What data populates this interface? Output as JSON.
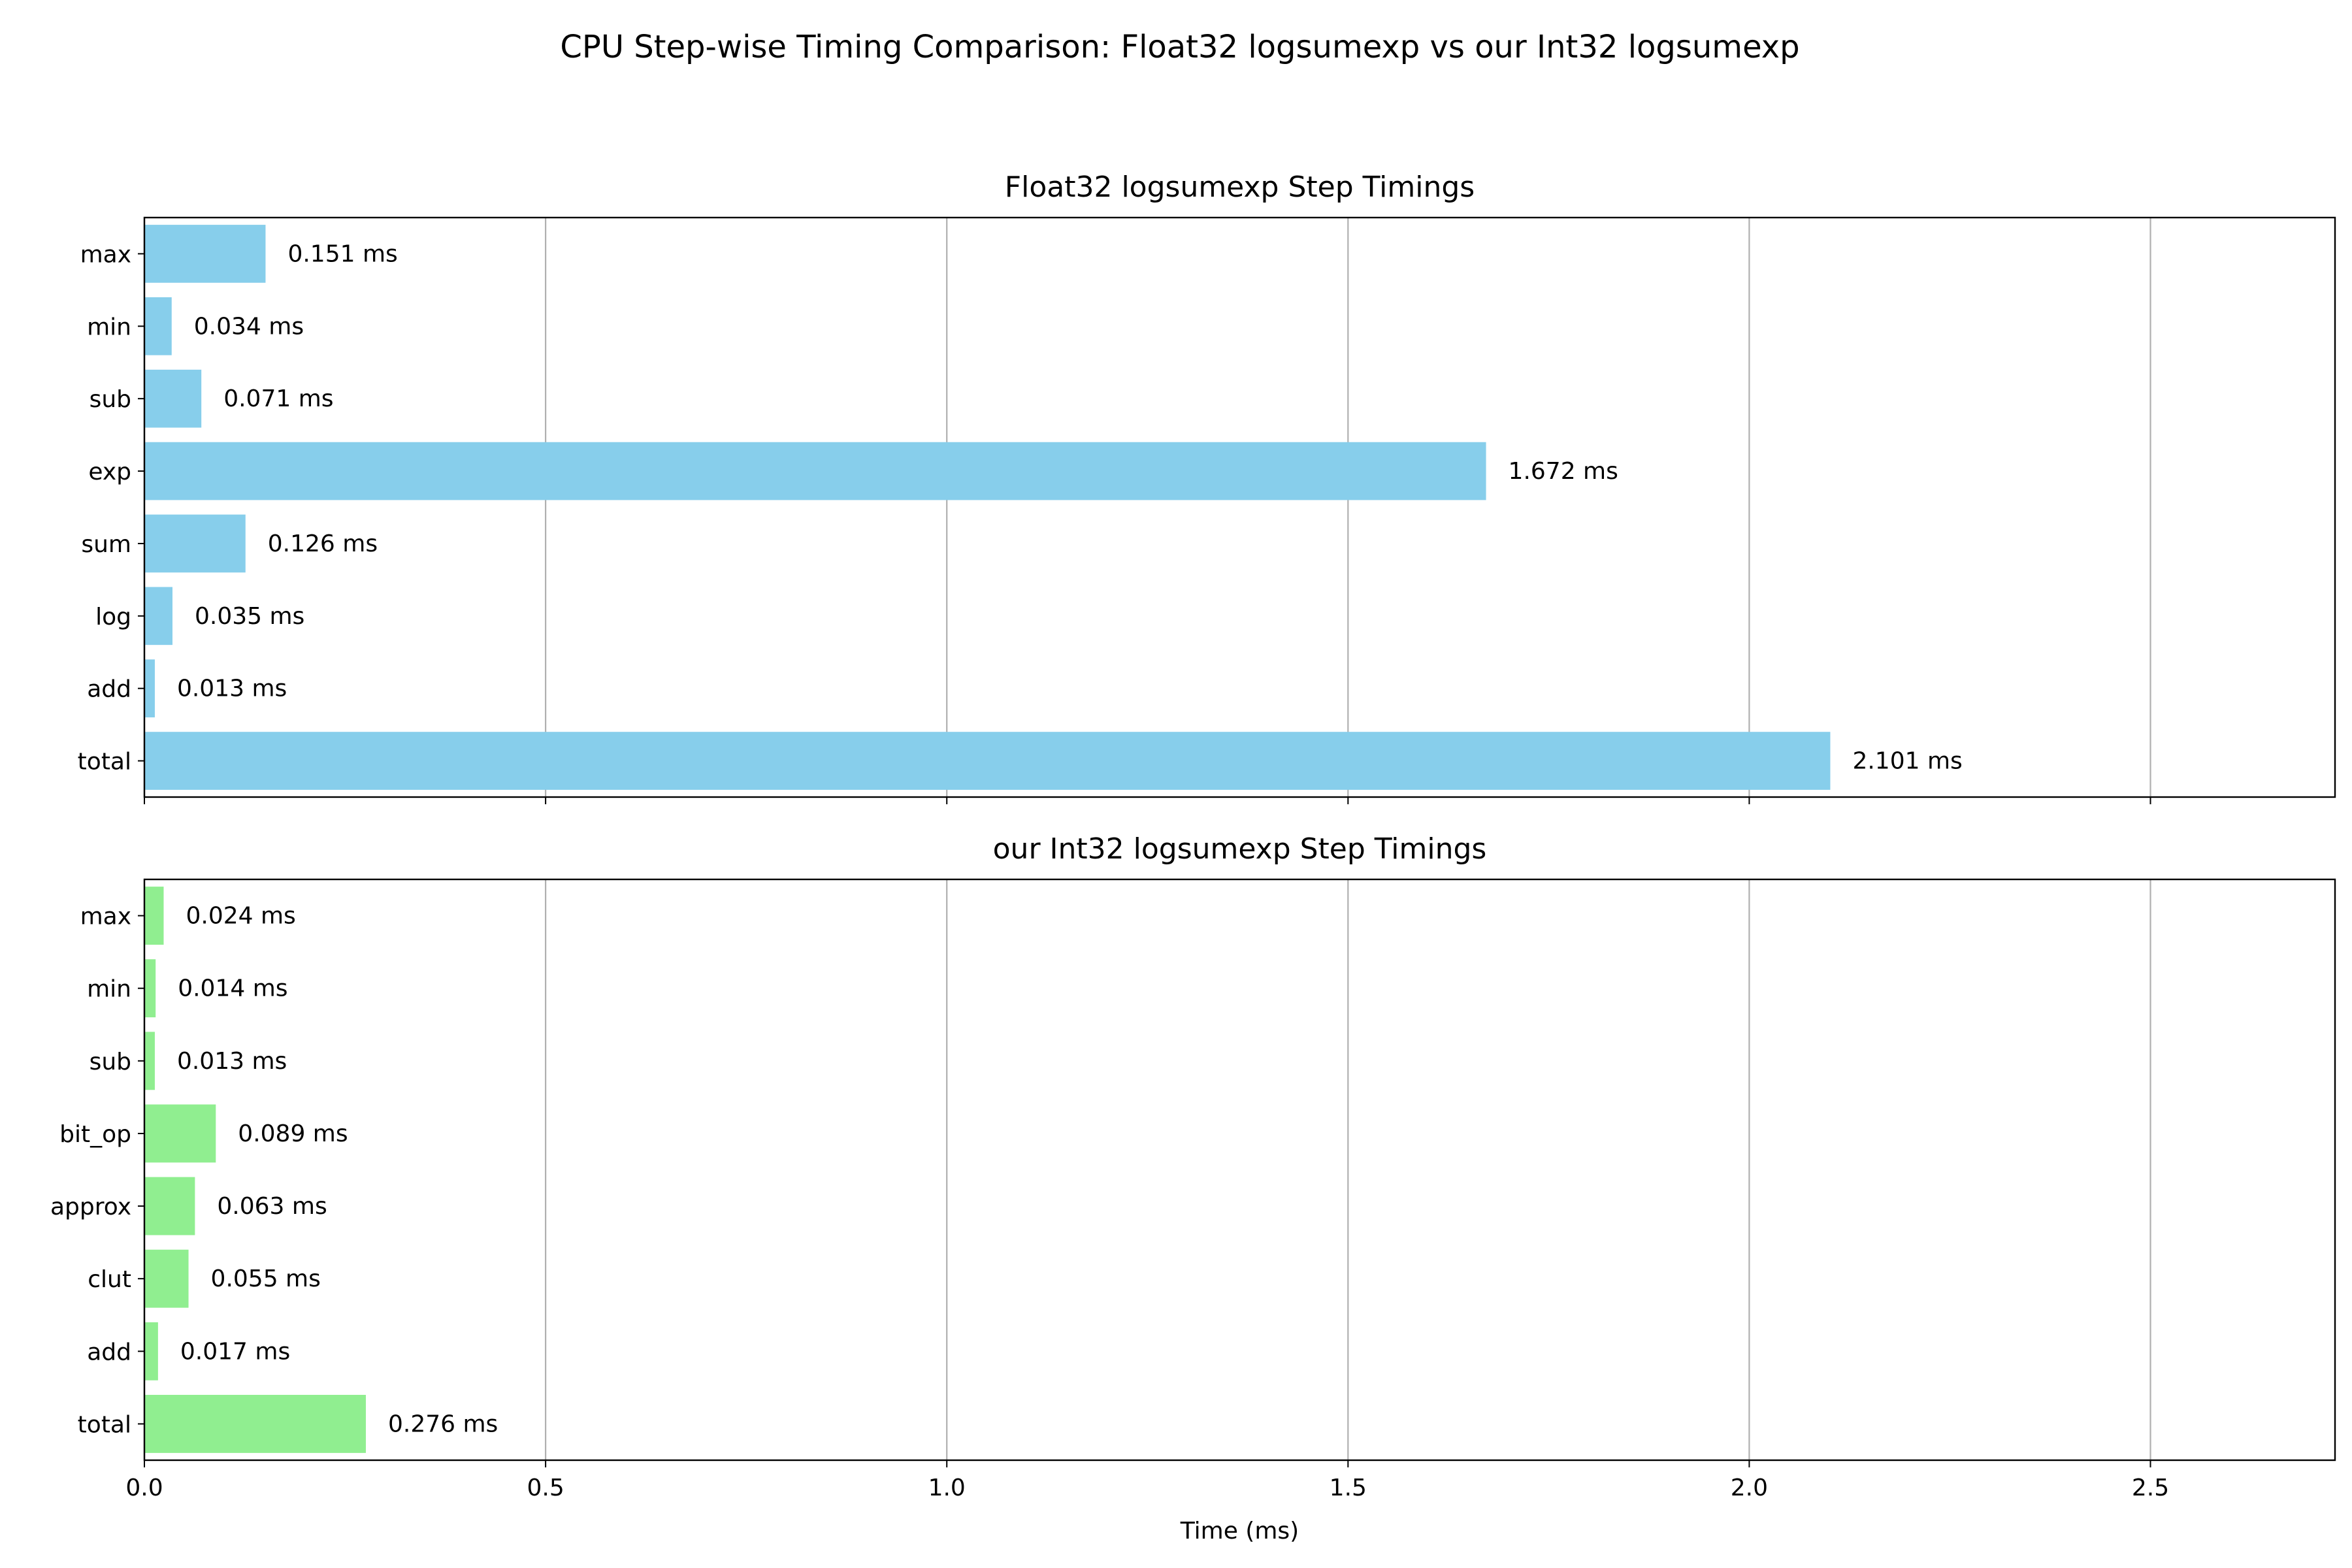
{
  "figure": {
    "title": "CPU Step-wise Timing Comparison: Float32 logsumexp vs our Int32 logsumexp"
  },
  "chart_data": [
    {
      "type": "bar",
      "orientation": "horizontal",
      "title": "Float32 logsumexp Step Timings",
      "categories": [
        "max",
        "min",
        "sub",
        "exp",
        "sum",
        "log",
        "add",
        "total"
      ],
      "values": [
        0.151,
        0.034,
        0.071,
        1.672,
        0.126,
        0.035,
        0.013,
        2.101
      ],
      "data_labels": [
        "0.151 ms",
        "0.034 ms",
        "0.071 ms",
        "1.672 ms",
        "0.126 ms",
        "0.035 ms",
        "0.013 ms",
        "2.101 ms"
      ],
      "color": "#87ceeb",
      "xlim": [
        0,
        2.73
      ],
      "xticks": [
        0.0,
        0.5,
        1.0,
        1.5,
        2.0,
        2.5
      ],
      "xtick_labels": [],
      "xlabel": "",
      "grid": "x"
    },
    {
      "type": "bar",
      "orientation": "horizontal",
      "title": "our Int32 logsumexp Step Timings",
      "categories": [
        "max",
        "min",
        "sub",
        "bit_op",
        "approx",
        "clut",
        "add",
        "total"
      ],
      "values": [
        0.024,
        0.014,
        0.013,
        0.089,
        0.063,
        0.055,
        0.017,
        0.276
      ],
      "data_labels": [
        "0.024 ms",
        "0.014 ms",
        "0.013 ms",
        "0.089 ms",
        "0.063 ms",
        "0.055 ms",
        "0.017 ms",
        "0.276 ms"
      ],
      "color": "#90ee90",
      "xlim": [
        0,
        2.73
      ],
      "xticks": [
        0.0,
        0.5,
        1.0,
        1.5,
        2.0,
        2.5
      ],
      "xtick_labels": [
        "0.0",
        "0.5",
        "1.0",
        "1.5",
        "2.0",
        "2.5"
      ],
      "xlabel": "Time (ms)",
      "grid": "x"
    }
  ]
}
